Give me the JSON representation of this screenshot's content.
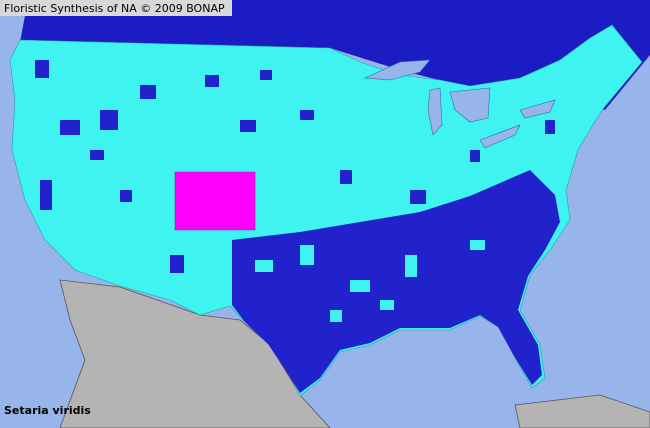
{
  "header": {
    "title": "Floristic Synthesis of NA © 2009 BONAP"
  },
  "map": {
    "species": "Setaria viridis"
  }
}
